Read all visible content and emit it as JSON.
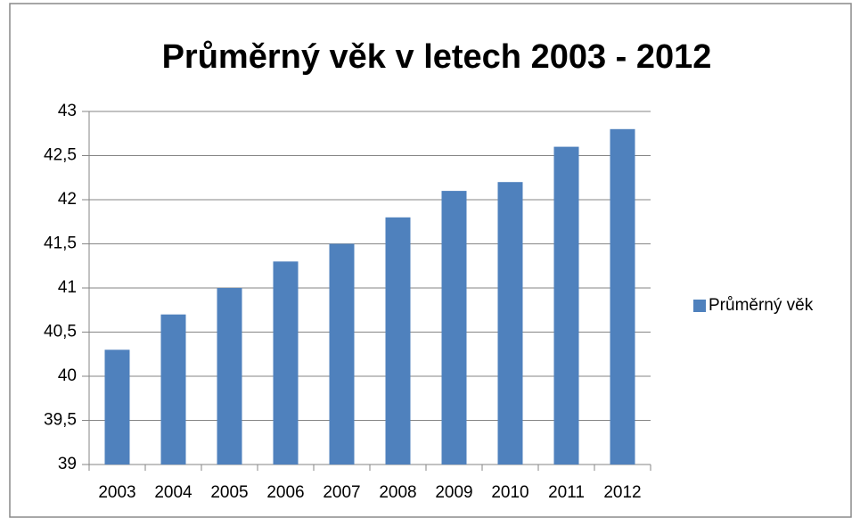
{
  "chart_data": {
    "type": "bar",
    "title": "Průměrný věk v letech 2003 - 2012",
    "categories": [
      "2003",
      "2004",
      "2005",
      "2006",
      "2007",
      "2008",
      "2009",
      "2010",
      "2011",
      "2012"
    ],
    "series": [
      {
        "name": "Průměrný věk",
        "color": "#4f81bd",
        "values": [
          40.3,
          40.7,
          41.0,
          41.3,
          41.5,
          41.8,
          42.1,
          42.2,
          42.6,
          42.8
        ]
      }
    ],
    "ylim": [
      39,
      43
    ],
    "yticks": [
      39,
      {
        "value": 39.5,
        "label": "39,5"
      },
      40,
      {
        "value": 40.5,
        "label": "40,5"
      },
      41,
      {
        "value": 41.5,
        "label": "41,5"
      },
      42,
      {
        "value": 42.5,
        "label": "42,5"
      },
      43
    ],
    "grid": true,
    "legend": "right"
  }
}
